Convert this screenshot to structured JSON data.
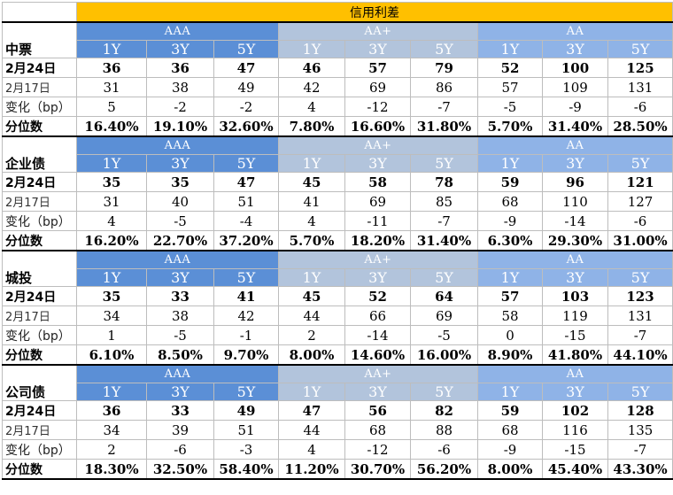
{
  "title": "信用利差",
  "groups": [
    "AAA",
    "AA+",
    "AA"
  ],
  "tenors": [
    "1Y",
    "3Y",
    "5Y"
  ],
  "row_labels": {
    "current": "2月24日",
    "previous": "2月17日",
    "change": "变化（bp）",
    "percentile": "分位数"
  },
  "colors": {
    "title_bg": "#ffc000",
    "aaa_header": "#5b8fd6",
    "aa_plus_header": "#b2c4dc",
    "aa_header": "#8fb3e7"
  },
  "sections": [
    {
      "name": "中票",
      "current": [
        "36",
        "36",
        "47",
        "46",
        "57",
        "79",
        "52",
        "100",
        "125"
      ],
      "previous": [
        "31",
        "38",
        "49",
        "42",
        "69",
        "86",
        "57",
        "109",
        "131"
      ],
      "change": [
        "5",
        "-2",
        "-2",
        "4",
        "-12",
        "-7",
        "-5",
        "-9",
        "-6"
      ],
      "percentile": [
        "16.40%",
        "19.10%",
        "32.60%",
        "7.80%",
        "16.60%",
        "31.80%",
        "5.70%",
        "31.40%",
        "28.50%"
      ]
    },
    {
      "name": "企业债",
      "current": [
        "35",
        "35",
        "47",
        "45",
        "58",
        "78",
        "59",
        "96",
        "121"
      ],
      "previous": [
        "31",
        "40",
        "51",
        "41",
        "69",
        "85",
        "68",
        "110",
        "127"
      ],
      "change": [
        "4",
        "-5",
        "-4",
        "4",
        "-11",
        "-7",
        "-9",
        "-14",
        "-6"
      ],
      "percentile": [
        "16.20%",
        "22.70%",
        "37.20%",
        "5.70%",
        "18.20%",
        "31.40%",
        "6.30%",
        "29.30%",
        "31.00%"
      ]
    },
    {
      "name": "城投",
      "current": [
        "35",
        "33",
        "41",
        "45",
        "52",
        "64",
        "57",
        "103",
        "123"
      ],
      "previous": [
        "34",
        "38",
        "42",
        "44",
        "66",
        "69",
        "58",
        "119",
        "131"
      ],
      "change": [
        "1",
        "-5",
        "-1",
        "2",
        "-14",
        "-5",
        "0",
        "-15",
        "-7"
      ],
      "percentile": [
        "6.10%",
        "8.50%",
        "9.70%",
        "8.00%",
        "14.60%",
        "16.00%",
        "8.90%",
        "41.80%",
        "44.10%"
      ]
    },
    {
      "name": "公司债",
      "current": [
        "36",
        "33",
        "49",
        "47",
        "56",
        "82",
        "59",
        "102",
        "128"
      ],
      "previous": [
        "34",
        "39",
        "51",
        "44",
        "68",
        "88",
        "68",
        "116",
        "135"
      ],
      "change": [
        "2",
        "-6",
        "-3",
        "4",
        "-12",
        "-6",
        "-9",
        "-15",
        "-7"
      ],
      "percentile": [
        "18.30%",
        "32.50%",
        "58.40%",
        "11.20%",
        "30.70%",
        "56.20%",
        "8.00%",
        "45.40%",
        "43.30%"
      ]
    }
  ]
}
